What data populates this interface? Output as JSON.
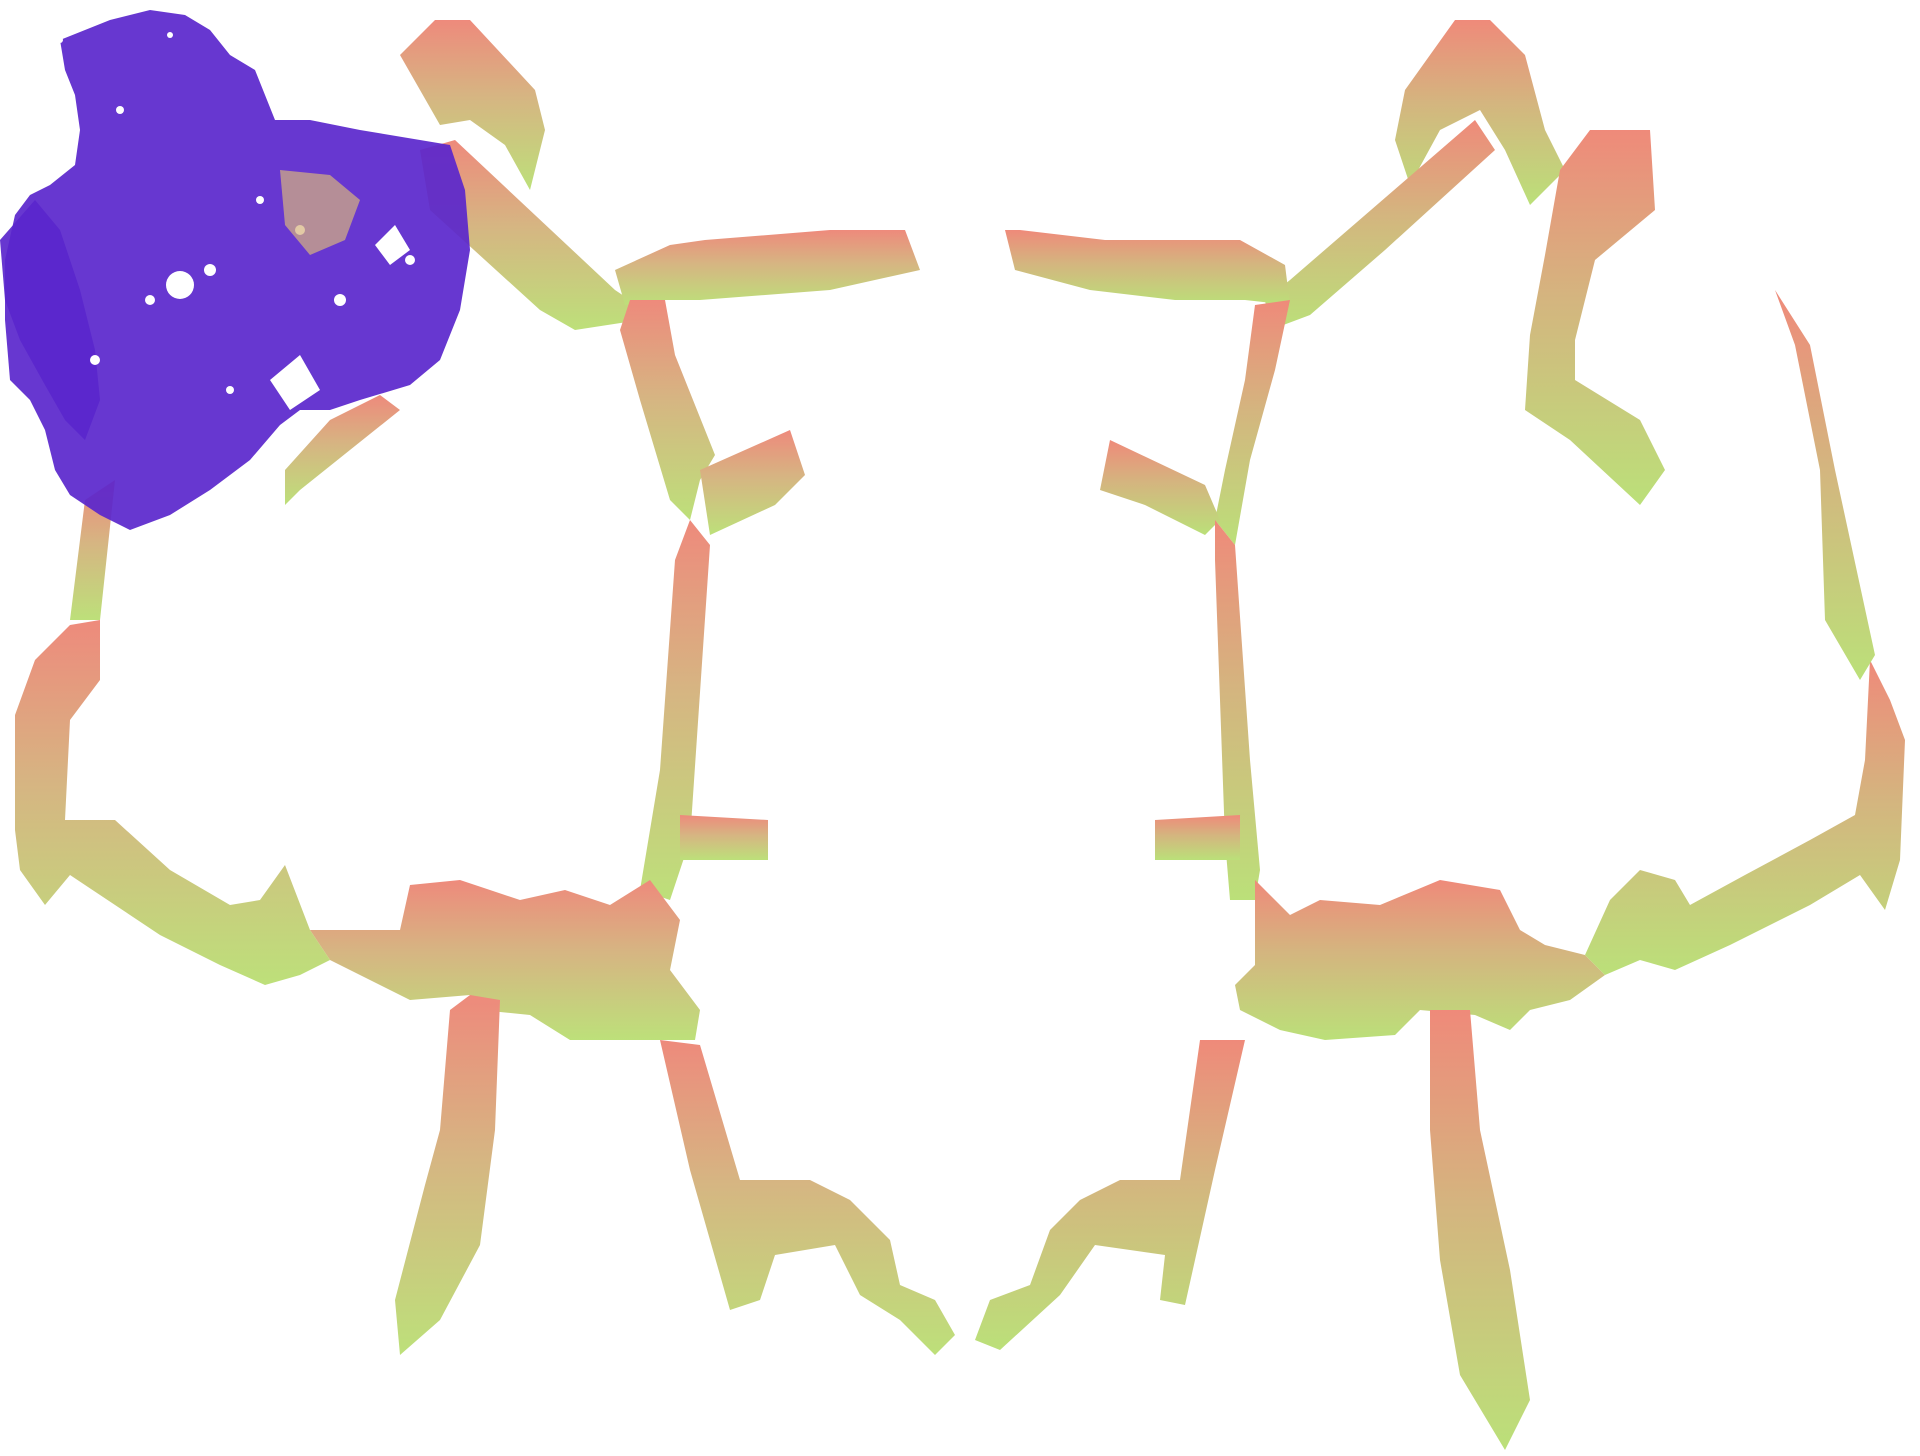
{
  "canvas": {
    "background": "#ffffff"
  },
  "artwork": {
    "description_name": "symmetric-branching-figure",
    "gradient_colors": {
      "top": "#ee8a7c",
      "middle": "#d6b582",
      "bottom": "#bde07a"
    },
    "overlay": {
      "name": "purple-scribble-overlay",
      "color": "#5a26cc"
    }
  }
}
